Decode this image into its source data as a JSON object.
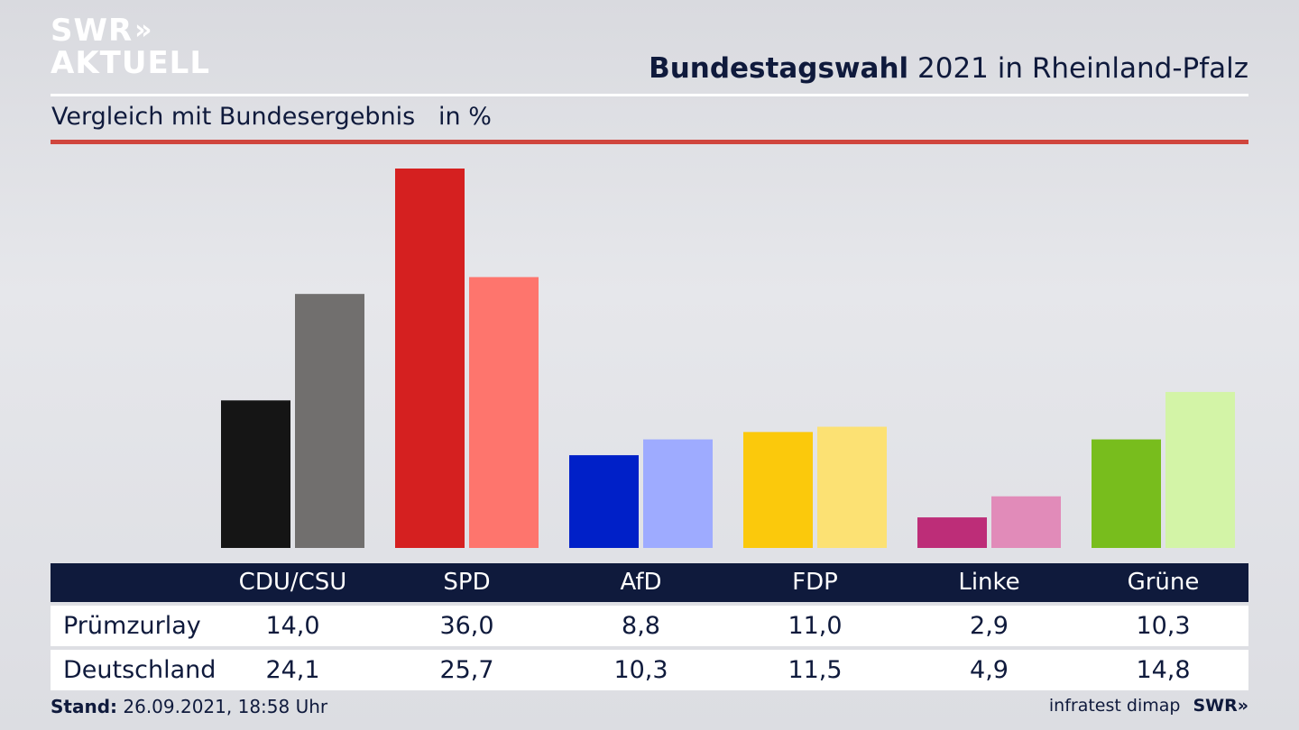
{
  "brand": {
    "line1": "SWR",
    "line2": "AKTUELL",
    "chevrons": "»"
  },
  "header": {
    "title_bold": "Bundestagswahl",
    "title_rest": " 2021 in Rheinland-Pfalz"
  },
  "subtitle": {
    "text": "Vergleich mit Bundesergebnis",
    "unit": "in %"
  },
  "colors": {
    "navy": "#0f1a3c",
    "red_rule": "#d0453d",
    "primary": [
      "#151515",
      "#d52020",
      "#0020c8",
      "#fbc90c",
      "#bd2d78",
      "#78bd1d"
    ],
    "secondary": [
      "#716f6e",
      "#fe756d",
      "#9eabff",
      "#fce173",
      "#e18bb9",
      "#d3f4a7"
    ]
  },
  "chart_data": {
    "type": "bar",
    "categories": [
      "CDU/CSU",
      "SPD",
      "AfD",
      "FDP",
      "Linke",
      "Grüne"
    ],
    "series": [
      {
        "name": "Prümzurlay",
        "values": [
          14.0,
          36.0,
          8.8,
          11.0,
          2.9,
          10.3
        ]
      },
      {
        "name": "Deutschland",
        "values": [
          24.1,
          25.7,
          10.3,
          11.5,
          4.9,
          14.8
        ]
      }
    ],
    "title": "Bundestagswahl 2021 in Rheinland-Pfalz",
    "subtitle": "Vergleich mit Bundesergebnis in %",
    "ylim": [
      0,
      36
    ],
    "grid": false,
    "legend": "none"
  },
  "table": {
    "headers": [
      "CDU/CSU",
      "SPD",
      "AfD",
      "FDP",
      "Linke",
      "Grüne"
    ],
    "rows": [
      {
        "label": "Prümzurlay",
        "values": [
          "14,0",
          "36,0",
          "8,8",
          "11,0",
          "2,9",
          "10,3"
        ]
      },
      {
        "label": "Deutschland",
        "values": [
          "24,1",
          "25,7",
          "10,3",
          "11,5",
          "4,9",
          "14,8"
        ]
      }
    ]
  },
  "footer": {
    "stand_label": "Stand:",
    "stand_value": " 26.09.2021, 18:58 Uhr",
    "source": "infratest dimap",
    "brand": "SWR",
    "brand_chevrons": "»"
  }
}
